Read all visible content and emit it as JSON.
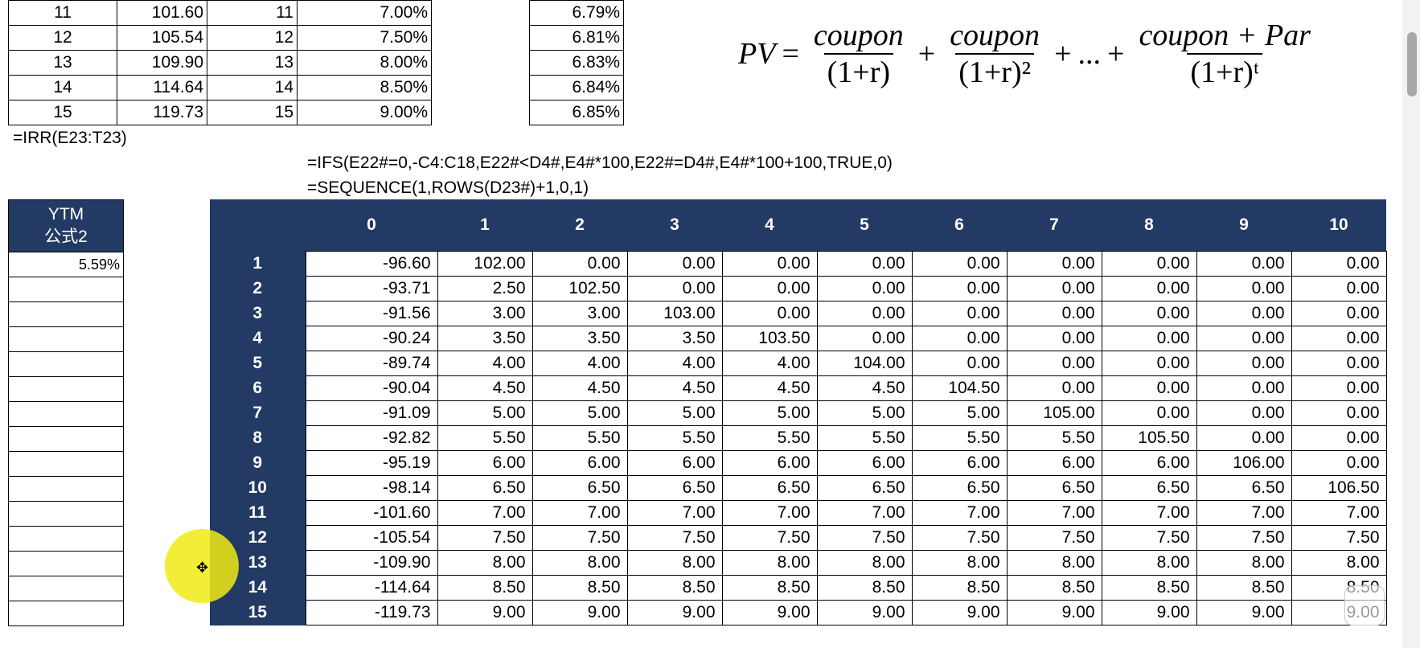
{
  "top_left_table": {
    "rows": [
      {
        "n": "11",
        "price": "101.60",
        "n2": "11",
        "coupon": "7.00%"
      },
      {
        "n": "12",
        "price": "105.54",
        "n2": "12",
        "coupon": "7.50%"
      },
      {
        "n": "13",
        "price": "109.90",
        "n2": "13",
        "coupon": "8.00%"
      },
      {
        "n": "14",
        "price": "114.64",
        "n2": "14",
        "coupon": "8.50%"
      },
      {
        "n": "15",
        "price": "119.73",
        "n2": "15",
        "coupon": "9.00%"
      }
    ]
  },
  "top_right_ytm": [
    "6.79%",
    "6.81%",
    "6.83%",
    "6.84%",
    "6.85%"
  ],
  "formulas": {
    "irr": "=IRR(E23:T23)",
    "ifs": "=IFS(E22#=0,-C4:C18,E22#<D4#,E4#*100,E22#=D4#,E4#*100+100,TRUE,0)",
    "sequence": "=SEQUENCE(1,ROWS(D23#)+1,0,1)"
  },
  "equation": {
    "lhs": "PV",
    "num1": "coupon",
    "den1": "(1+r)",
    "num2": "coupon",
    "den2": "(1+r)²",
    "dots": "...",
    "num3": "coupon + Par",
    "den3": "(1+r)ᵗ"
  },
  "ytm_table": {
    "header_line1": "YTM",
    "header_line2": "公式2",
    "values": [
      "5.59%",
      "",
      "",
      "",
      "",
      "",
      "",
      "",
      "",
      "",
      "",
      "",
      "",
      "",
      ""
    ]
  },
  "matrix": {
    "columns": [
      "0",
      "1",
      "2",
      "3",
      "4",
      "5",
      "6",
      "7",
      "8",
      "9",
      "10"
    ],
    "rows": [
      {
        "label": "1",
        "values": [
          "-96.60",
          "102.00",
          "0.00",
          "0.00",
          "0.00",
          "0.00",
          "0.00",
          "0.00",
          "0.00",
          "0.00",
          "0.00"
        ]
      },
      {
        "label": "2",
        "values": [
          "-93.71",
          "2.50",
          "102.50",
          "0.00",
          "0.00",
          "0.00",
          "0.00",
          "0.00",
          "0.00",
          "0.00",
          "0.00"
        ]
      },
      {
        "label": "3",
        "values": [
          "-91.56",
          "3.00",
          "3.00",
          "103.00",
          "0.00",
          "0.00",
          "0.00",
          "0.00",
          "0.00",
          "0.00",
          "0.00"
        ]
      },
      {
        "label": "4",
        "values": [
          "-90.24",
          "3.50",
          "3.50",
          "3.50",
          "103.50",
          "0.00",
          "0.00",
          "0.00",
          "0.00",
          "0.00",
          "0.00"
        ]
      },
      {
        "label": "5",
        "values": [
          "-89.74",
          "4.00",
          "4.00",
          "4.00",
          "4.00",
          "104.00",
          "0.00",
          "0.00",
          "0.00",
          "0.00",
          "0.00"
        ]
      },
      {
        "label": "6",
        "values": [
          "-90.04",
          "4.50",
          "4.50",
          "4.50",
          "4.50",
          "4.50",
          "104.50",
          "0.00",
          "0.00",
          "0.00",
          "0.00"
        ]
      },
      {
        "label": "7",
        "values": [
          "-91.09",
          "5.00",
          "5.00",
          "5.00",
          "5.00",
          "5.00",
          "5.00",
          "105.00",
          "0.00",
          "0.00",
          "0.00"
        ]
      },
      {
        "label": "8",
        "values": [
          "-92.82",
          "5.50",
          "5.50",
          "5.50",
          "5.50",
          "5.50",
          "5.50",
          "5.50",
          "105.50",
          "0.00",
          "0.00"
        ]
      },
      {
        "label": "9",
        "values": [
          "-95.19",
          "6.00",
          "6.00",
          "6.00",
          "6.00",
          "6.00",
          "6.00",
          "6.00",
          "6.00",
          "106.00",
          "0.00"
        ]
      },
      {
        "label": "10",
        "values": [
          "-98.14",
          "6.50",
          "6.50",
          "6.50",
          "6.50",
          "6.50",
          "6.50",
          "6.50",
          "6.50",
          "6.50",
          "106.50"
        ]
      },
      {
        "label": "11",
        "values": [
          "-101.60",
          "7.00",
          "7.00",
          "7.00",
          "7.00",
          "7.00",
          "7.00",
          "7.00",
          "7.00",
          "7.00",
          "7.00"
        ]
      },
      {
        "label": "12",
        "values": [
          "-105.54",
          "7.50",
          "7.50",
          "7.50",
          "7.50",
          "7.50",
          "7.50",
          "7.50",
          "7.50",
          "7.50",
          "7.50"
        ]
      },
      {
        "label": "13",
        "values": [
          "-109.90",
          "8.00",
          "8.00",
          "8.00",
          "8.00",
          "8.00",
          "8.00",
          "8.00",
          "8.00",
          "8.00",
          "8.00"
        ]
      },
      {
        "label": "14",
        "values": [
          "-114.64",
          "8.50",
          "8.50",
          "8.50",
          "8.50",
          "8.50",
          "8.50",
          "8.50",
          "8.50",
          "8.50",
          "8.50"
        ]
      },
      {
        "label": "15",
        "values": [
          "-119.73",
          "9.00",
          "9.00",
          "9.00",
          "9.00",
          "9.00",
          "9.00",
          "9.00",
          "9.00",
          "9.00",
          "9.00"
        ]
      }
    ]
  },
  "colors": {
    "header_bg": "#223a64",
    "header_text": "#ffffff",
    "cursor_highlight": "#f0eb14"
  },
  "icons": [
    "cursor-move-icon",
    "screen-tool-icon"
  ]
}
